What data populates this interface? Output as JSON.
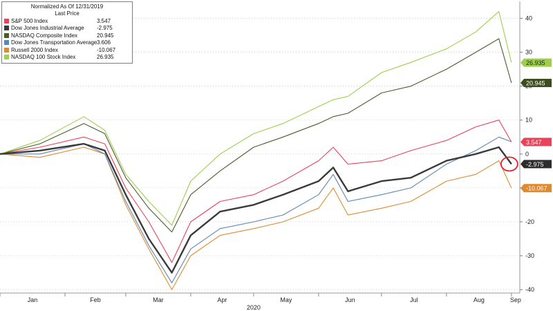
{
  "chart_data": {
    "type": "line",
    "legend": {
      "title1": "Normalized As Of 12/31/2019",
      "title2": "Last Price",
      "placement": "top-left"
    },
    "y_ticks": [
      "40",
      "30",
      "20",
      "10",
      "0",
      "-10",
      "-20",
      "-30",
      "-40"
    ],
    "ylim": [
      -41,
      45
    ],
    "x_labels": [
      "Jan",
      "Feb",
      "Mar",
      "Apr",
      "May",
      "Jun",
      "Jul",
      "Aug",
      "Sep"
    ],
    "x_year": "2020",
    "x": [
      "2020-01-01",
      "2020-01-20",
      "2020-02-10",
      "2020-02-20",
      "2020-03-01",
      "2020-03-12",
      "2020-03-23",
      "2020-04-01",
      "2020-04-15",
      "2020-05-01",
      "2020-05-15",
      "2020-06-01",
      "2020-06-08",
      "2020-06-15",
      "2020-07-01",
      "2020-07-15",
      "2020-08-01",
      "2020-08-15",
      "2020-08-26",
      "2020-09-01"
    ],
    "series": [
      {
        "name": "S&P 500 Index",
        "value_label": "3.547",
        "color": "#e8435a",
        "values": [
          0,
          2,
          5,
          3,
          -10,
          -20,
          -32,
          -20,
          -14,
          -12,
          -8,
          -2,
          2,
          -3,
          -2,
          1,
          4,
          8,
          10,
          3.547
        ]
      },
      {
        "name": "Dow Jones Industrial Average",
        "value_label": "-2.975",
        "color": "#3a3a3a",
        "values": [
          0,
          1,
          3,
          1,
          -12,
          -25,
          -35,
          -24,
          -17,
          -15,
          -12,
          -8,
          -4,
          -11,
          -8,
          -7,
          -2,
          0,
          2,
          -2.975
        ]
      },
      {
        "name": "NASDAQ Composite Index",
        "value_label": "20.945",
        "color": "#4b5a2a",
        "values": [
          0,
          3,
          9,
          6,
          -7,
          -16,
          -23,
          -12,
          -5,
          2,
          5,
          9,
          11,
          12,
          18,
          20,
          25,
          30,
          34,
          20.945
        ]
      },
      {
        "name": "Dow Jones Transportation Average",
        "value_label": "3.606",
        "color": "#5c86b3",
        "values": [
          0,
          0,
          3,
          0,
          -14,
          -27,
          -38,
          -28,
          -22,
          -20,
          -18,
          -12,
          -6,
          -14,
          -12,
          -10,
          -3,
          1,
          5,
          3.606
        ]
      },
      {
        "name": "Russell 2000 Index",
        "value_label": "-10.067",
        "color": "#e08a2f",
        "values": [
          0,
          -1,
          2,
          0,
          -15,
          -28,
          -40,
          -30,
          -24,
          -22,
          -20,
          -16,
          -10,
          -18,
          -16,
          -14,
          -8,
          -6,
          -2,
          -10.067
        ]
      },
      {
        "name": "NASDAQ 100 Stock Index",
        "value_label": "26.935",
        "color": "#9cd04a",
        "values": [
          0,
          4,
          11,
          7,
          -6,
          -14,
          -21,
          -8,
          0,
          6,
          9,
          14,
          16,
          17,
          24,
          27,
          31,
          36,
          42,
          26.935
        ]
      }
    ]
  }
}
